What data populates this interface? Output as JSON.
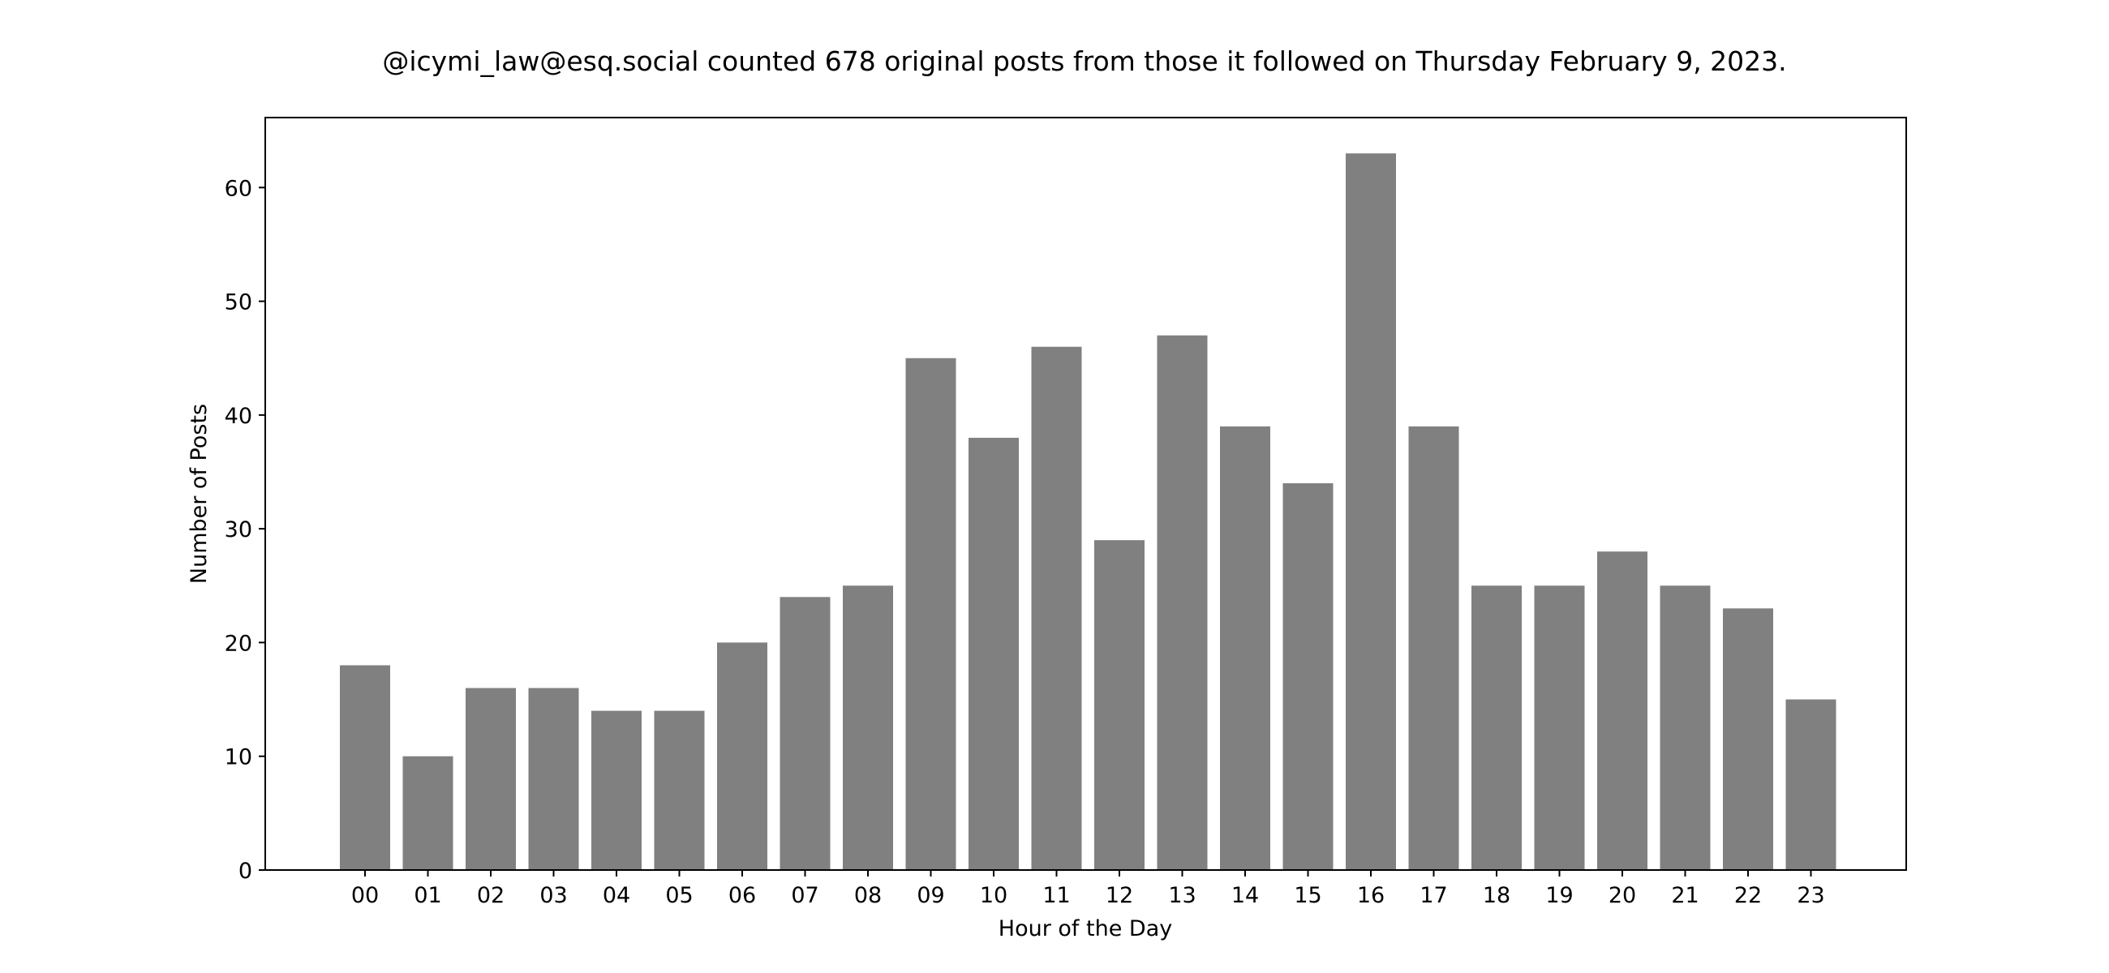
{
  "chart_data": {
    "type": "bar",
    "title": "@icymi_law@esq.social counted 678 original posts from those it followed on Thursday February 9, 2023.",
    "xlabel": "Hour of the Day",
    "ylabel": "Number of Posts",
    "categories": [
      "00",
      "01",
      "02",
      "03",
      "04",
      "05",
      "06",
      "07",
      "08",
      "09",
      "10",
      "11",
      "12",
      "13",
      "14",
      "15",
      "16",
      "17",
      "18",
      "19",
      "20",
      "21",
      "22",
      "23"
    ],
    "values": [
      18,
      10,
      16,
      16,
      14,
      14,
      20,
      24,
      25,
      45,
      38,
      46,
      29,
      47,
      39,
      34,
      63,
      39,
      25,
      25,
      28,
      25,
      23,
      15
    ],
    "ylim": [
      0,
      66.15
    ],
    "yticks": [
      0,
      10,
      20,
      30,
      40,
      50,
      60
    ],
    "grid": false,
    "bar_color": "#808080"
  }
}
